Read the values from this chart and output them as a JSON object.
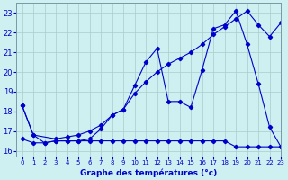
{
  "title": "Graphe des températures (°c)",
  "bg_color": "#cff0f0",
  "line_color": "#0000cc",
  "grid_color": "#aacccc",
  "xlim": [
    -0.5,
    23
  ],
  "ylim": [
    15.7,
    23.5
  ],
  "xticks": [
    0,
    1,
    2,
    3,
    4,
    5,
    6,
    7,
    8,
    9,
    10,
    11,
    12,
    13,
    14,
    15,
    16,
    17,
    18,
    19,
    20,
    21,
    22,
    23
  ],
  "yticks": [
    16,
    17,
    18,
    19,
    20,
    21,
    22,
    23
  ],
  "series1_x": [
    0,
    1,
    2,
    3,
    4,
    5,
    6,
    7,
    8,
    9,
    10,
    11,
    12,
    13,
    14,
    15,
    16,
    17,
    18,
    19,
    20,
    21,
    22,
    23
  ],
  "series1_y": [
    18.3,
    16.8,
    16.4,
    16.5,
    16.5,
    16.5,
    16.6,
    17.1,
    17.8,
    18.1,
    19.3,
    20.5,
    21.2,
    18.5,
    18.5,
    18.2,
    20.1,
    22.2,
    22.4,
    23.1,
    21.4,
    19.4,
    17.2,
    16.2
  ],
  "series2_x": [
    0,
    1,
    2,
    3,
    4,
    5,
    6,
    7,
    8,
    9,
    10,
    11,
    12,
    13,
    14,
    15,
    16,
    17,
    18,
    19,
    20,
    21,
    22,
    23
  ],
  "series2_y": [
    16.6,
    16.4,
    16.4,
    16.5,
    16.5,
    16.5,
    16.5,
    16.5,
    16.5,
    16.5,
    16.5,
    16.5,
    16.5,
    16.5,
    16.5,
    16.5,
    16.5,
    16.5,
    16.5,
    16.2,
    16.2,
    16.2,
    16.2,
    16.2
  ],
  "series3_x": [
    0,
    1,
    3,
    4,
    5,
    6,
    7,
    8,
    9,
    10,
    11,
    12,
    13,
    14,
    15,
    16,
    17,
    18,
    19,
    20,
    21,
    22,
    23
  ],
  "series3_y": [
    18.3,
    16.8,
    16.6,
    16.7,
    16.8,
    17.0,
    17.3,
    17.8,
    18.1,
    18.9,
    19.5,
    20.0,
    20.4,
    20.7,
    21.0,
    21.4,
    21.9,
    22.3,
    22.7,
    23.1,
    22.4,
    21.8,
    22.5
  ]
}
